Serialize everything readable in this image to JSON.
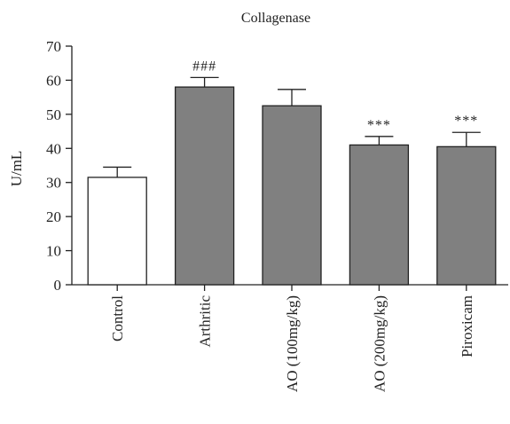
{
  "chart_data": {
    "type": "bar",
    "title": "Collagenase",
    "xlabel": "",
    "ylabel": "U/mL",
    "ylim": [
      0,
      70
    ],
    "yticks": [
      0,
      10,
      20,
      30,
      40,
      50,
      60,
      70
    ],
    "categories": [
      "Control",
      "Arthritic",
      "AO (100mg/kg)",
      "AO (200mg/kg)",
      "Piroxicam"
    ],
    "values": [
      31.5,
      58.0,
      52.5,
      41.0,
      40.5
    ],
    "errors": [
      3.0,
      2.8,
      4.8,
      2.5,
      4.2
    ],
    "significance": [
      "",
      "###",
      "",
      "***",
      "***"
    ],
    "bar_colors": [
      "#ffffff",
      "#808080",
      "#808080",
      "#808080",
      "#808080"
    ],
    "bar_edge_color": "#222222",
    "grid": false,
    "legend": "none"
  }
}
